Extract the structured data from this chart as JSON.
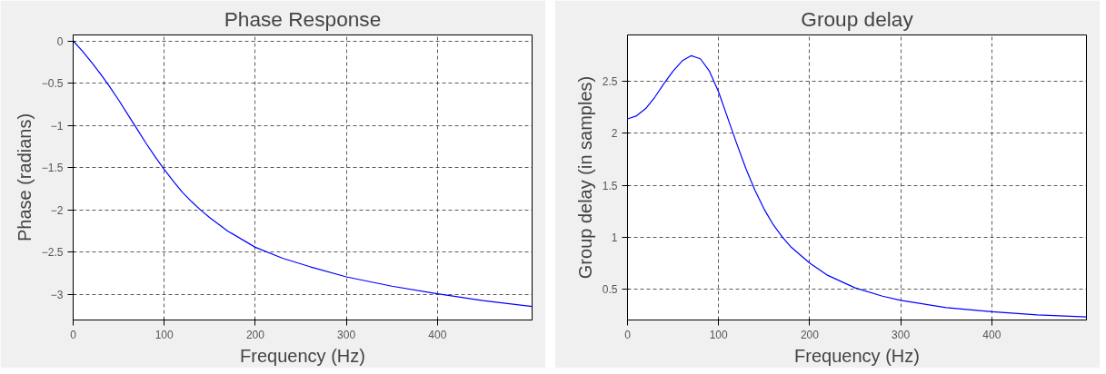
{
  "chart_data": [
    {
      "type": "line",
      "title": "Phase Response",
      "xlabel": "Frequency (Hz)",
      "ylabel": "Phase (radians)",
      "xlim": [
        0,
        504
      ],
      "ylim": [
        -3.3,
        0.07
      ],
      "xticks": [
        0,
        100,
        200,
        300,
        400
      ],
      "yticks": [
        0,
        -0.5,
        -1,
        -1.5,
        -2,
        -2.5,
        -3
      ],
      "grid": true,
      "series": [
        {
          "color": "#0000ff",
          "x": [
            0,
            10,
            20,
            30,
            40,
            50,
            60,
            70,
            80,
            90,
            100,
            110,
            120,
            130,
            140,
            150,
            170,
            200,
            230,
            260,
            300,
            350,
            400,
            450,
            504
          ],
          "values": [
            0,
            -0.12,
            -0.25,
            -0.39,
            -0.54,
            -0.7,
            -0.87,
            -1.04,
            -1.21,
            -1.37,
            -1.52,
            -1.66,
            -1.79,
            -1.9,
            -2.0,
            -2.09,
            -2.25,
            -2.44,
            -2.57,
            -2.67,
            -2.79,
            -2.9,
            -2.99,
            -3.07,
            -3.14
          ]
        }
      ]
    },
    {
      "type": "line",
      "title": "Group delay",
      "xlabel": "Frequency (Hz)",
      "ylabel": "Group delay (in samples)",
      "xlim": [
        0,
        504
      ],
      "ylim": [
        0.2,
        2.95
      ],
      "xticks": [
        0,
        100,
        200,
        300,
        400
      ],
      "yticks": [
        0.5,
        1,
        1.5,
        2,
        2.5
      ],
      "grid": true,
      "series": [
        {
          "color": "#0000ff",
          "x": [
            0,
            10,
            20,
            30,
            40,
            50,
            60,
            70,
            80,
            90,
            100,
            110,
            120,
            130,
            140,
            150,
            160,
            170,
            180,
            200,
            220,
            250,
            280,
            300,
            350,
            400,
            450,
            504
          ],
          "values": [
            2.14,
            2.17,
            2.24,
            2.35,
            2.48,
            2.6,
            2.7,
            2.75,
            2.72,
            2.6,
            2.4,
            2.15,
            1.9,
            1.66,
            1.45,
            1.27,
            1.12,
            1.0,
            0.9,
            0.75,
            0.63,
            0.51,
            0.43,
            0.39,
            0.32,
            0.28,
            0.25,
            0.23
          ]
        }
      ]
    }
  ]
}
